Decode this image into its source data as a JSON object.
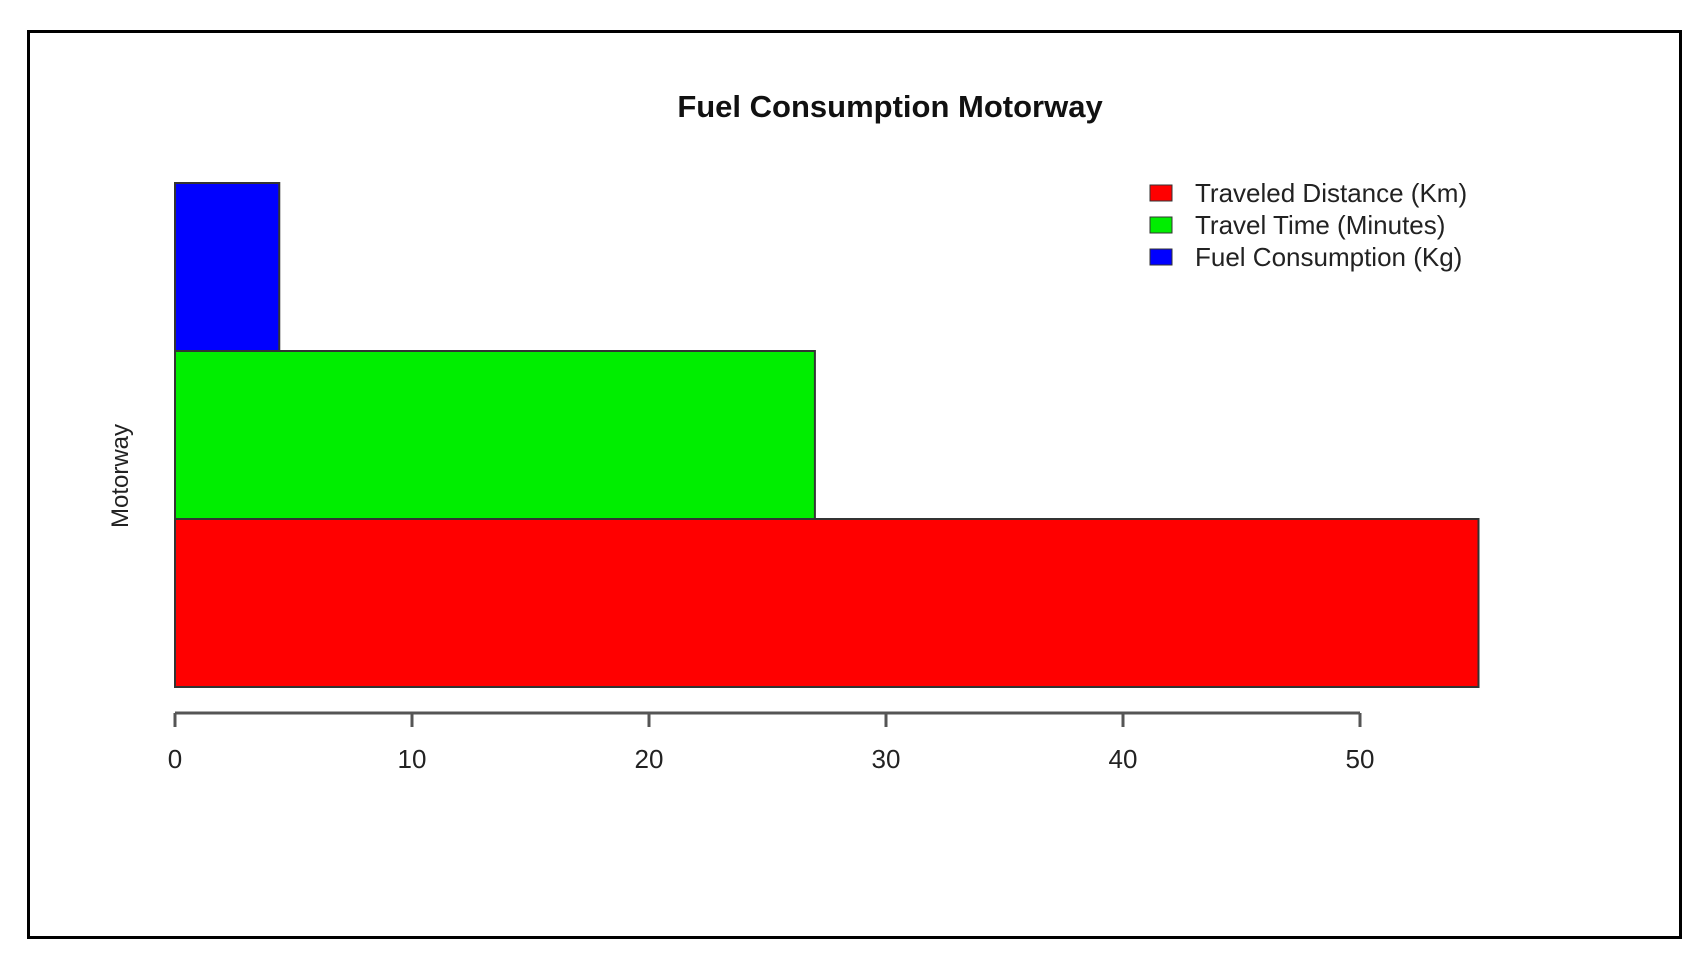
{
  "chart_data": {
    "type": "bar",
    "orientation": "horizontal",
    "title": "Fuel Consumption Motorway",
    "ylabel": "Motorway",
    "xlabel": "",
    "xlim": [
      0,
      55
    ],
    "xticks": [
      0,
      10,
      20,
      30,
      40,
      50
    ],
    "grid": false,
    "legend_position": "top-right",
    "series": [
      {
        "name": "Traveled Distance (Km)",
        "value": 55,
        "color": "#ff0000"
      },
      {
        "name": "Travel Time (Minutes)",
        "value": 27,
        "color": "#00ee00"
      },
      {
        "name": "Fuel Consumption (Kg)",
        "value": 4.4,
        "color": "#0000ff"
      }
    ]
  }
}
